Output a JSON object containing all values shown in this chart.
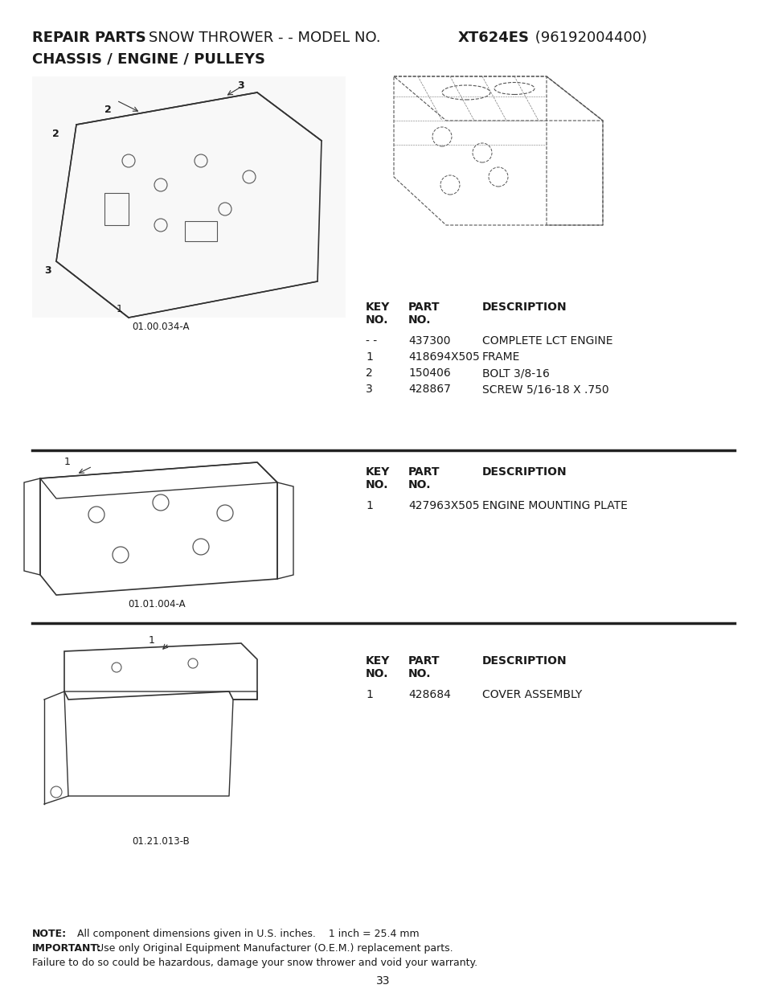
{
  "title_line1_normal": "REPAIR PARTS    SNOW THROWER - - MODEL NO. ",
  "title_line1_bold_part": "XT624ES",
  "title_line1_end": " (96192004400)",
  "title_line2": "CHASSIS / ENGINE / PULLEYS",
  "bg_color": "#ffffff",
  "text_color": "#1a1a1a",
  "divider_color": "#222222",
  "section1": {
    "diagram_label": "01.00.034-A",
    "diagram2_label": "",
    "parts": [
      {
        "key": "- -",
        "part": "437300",
        "desc": "COMPLETE LCT ENGINE"
      },
      {
        "key": "1",
        "part": "418694X505",
        "desc": "FRAME"
      },
      {
        "key": "2",
        "part": "150406",
        "desc": "BOLT 3/8-16"
      },
      {
        "key": "3",
        "part": "428867",
        "desc": "SCREW 5/16-18 X .750"
      }
    ]
  },
  "section2": {
    "diagram_label": "01.01.004-A",
    "parts": [
      {
        "key": "1",
        "part": "427963X505",
        "desc": "ENGINE MOUNTING PLATE"
      }
    ]
  },
  "section3": {
    "diagram_label": "01.21.013-B",
    "parts": [
      {
        "key": "1",
        "part": "428684",
        "desc": "COVER ASSEMBLY"
      }
    ]
  },
  "footer_note": "  All component dimensions given in U.S. inches.    1 inch = 25.4 mm",
  "footer_important": "Use only Original Equipment Manufacturer (O.E.M.) replacement parts.",
  "footer_warning": "Failure to do so could be hazardous, damage your snow thrower and void your warranty.",
  "page_number": "33"
}
